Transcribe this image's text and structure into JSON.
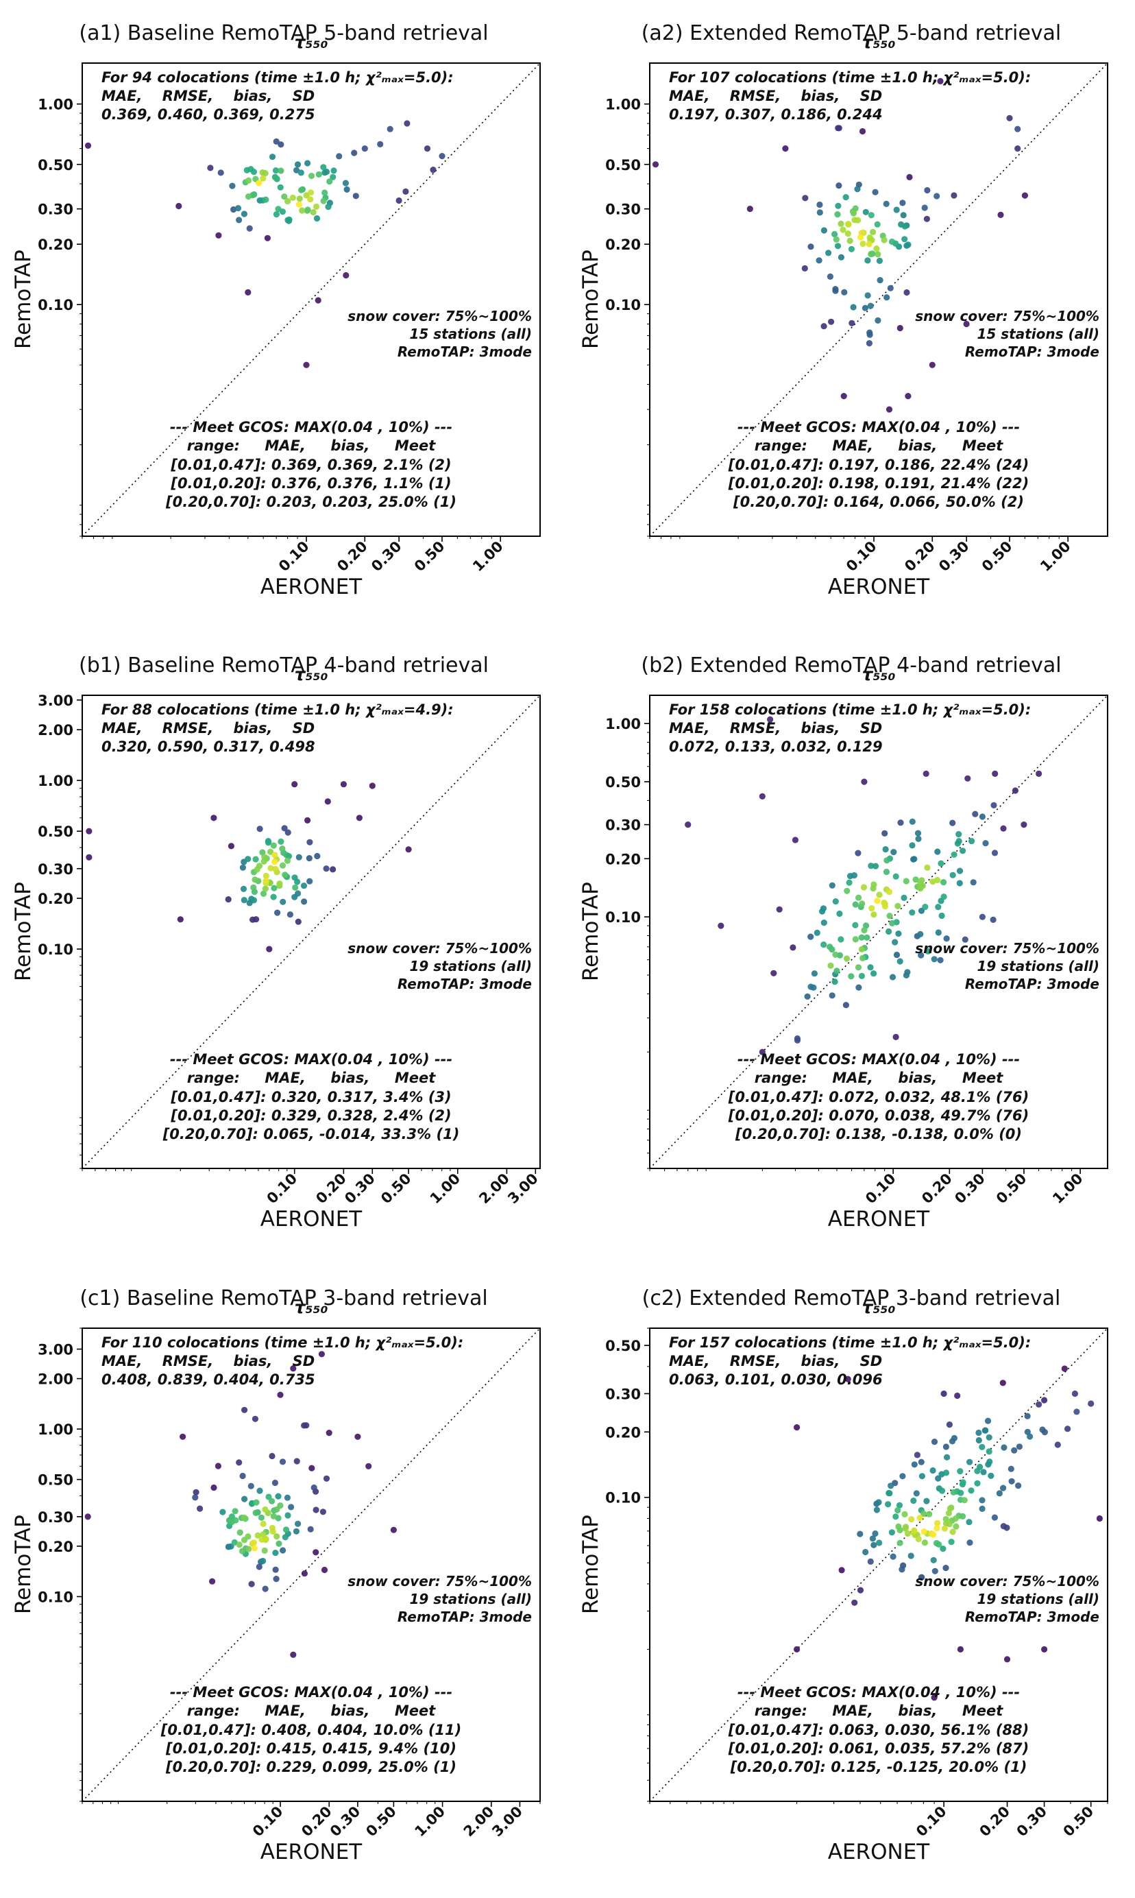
{
  "colors": {
    "axis": "#000000",
    "diagonal": "#000000",
    "viridis_stops": [
      [
        0.0,
        "#440154"
      ],
      [
        0.13,
        "#471f70"
      ],
      [
        0.25,
        "#3b518b"
      ],
      [
        0.38,
        "#2c718e"
      ],
      [
        0.5,
        "#21908d"
      ],
      [
        0.63,
        "#27ad81"
      ],
      [
        0.75,
        "#5cc863"
      ],
      [
        0.88,
        "#aadc32"
      ],
      [
        1.0,
        "#fde725"
      ]
    ]
  },
  "chart_data": [
    {
      "id": "a1",
      "type": "scatter",
      "title": "(a1) Baseline RemoTAP 5-band retrieval",
      "subtitle": "τ₅₅₀",
      "xlabel": "AERONET",
      "ylabel": "RemoTAP",
      "axis": {
        "scale": "log",
        "min": 0.007,
        "max": 1.6,
        "ticks": [
          0.1,
          0.2,
          0.3,
          0.5,
          1.0
        ]
      },
      "stats_lines": [
        "For 94 colocations (time ±1.0 h; χ²ₘₐₓ=5.0):",
        "MAE,    RMSE,    bias,    SD",
        "0.369, 0.460, 0.369, 0.275"
      ],
      "side_lines": [
        "snow cover: 75%~100%",
        "15 stations (all)",
        "RemoTAP: 3mode"
      ],
      "gcos_lines": [
        "--- Meet GCOS: MAX(0.04 , 10%) ---",
        "range:     MAE,     bias,     Meet",
        "[0.01,0.47]: 0.369, 0.369, 2.1% (2)",
        "[0.01,0.20]: 0.376, 0.376, 1.1% (1)",
        "[0.20,0.70]: 0.203, 0.203, 25.0% (1)"
      ],
      "scatter": {
        "seed": 101,
        "clusters": [
          {
            "cx": 0.085,
            "cy": 0.37,
            "sx": 0.18,
            "sy": 0.1,
            "corr": 0,
            "n": 78
          }
        ],
        "outliers": [
          [
            0.0075,
            0.62
          ],
          [
            0.27,
            0.75
          ],
          [
            0.33,
            0.8
          ],
          [
            0.42,
            0.6
          ],
          [
            0.5,
            0.55
          ],
          [
            0.24,
            0.63
          ],
          [
            0.05,
            0.115
          ],
          [
            0.115,
            0.105
          ],
          [
            0.1,
            0.05
          ],
          [
            0.032,
            0.48
          ],
          [
            0.3,
            0.33
          ],
          [
            0.2,
            0.6
          ],
          [
            0.022,
            0.31
          ],
          [
            0.16,
            0.14
          ],
          [
            0.07,
            0.65
          ],
          [
            0.45,
            0.47
          ]
        ]
      }
    },
    {
      "id": "a2",
      "type": "scatter",
      "title": "(a2) Extended RemoTAP 5-band retrieval",
      "subtitle": "τ₅₅₀",
      "xlabel": "AERONET",
      "ylabel": "RemoTAP",
      "axis": {
        "scale": "log",
        "min": 0.007,
        "max": 1.6,
        "ticks": [
          0.1,
          0.2,
          0.3,
          0.5,
          1.0
        ]
      },
      "stats_lines": [
        "For 107 colocations (time ±1.0 h; χ²ₘₐₓ=5.0):",
        "MAE,    RMSE,    bias,    SD",
        "0.197, 0.307, 0.186, 0.244"
      ],
      "side_lines": [
        "snow cover: 75%~100%",
        "15 stations (all)",
        "RemoTAP: 3mode"
      ],
      "gcos_lines": [
        "--- Meet GCOS: MAX(0.04 , 10%) ---",
        "range:     MAE,     bias,     Meet",
        "[0.01,0.47]: 0.197, 0.186, 22.4% (24)",
        "[0.01,0.20]: 0.198, 0.191, 21.4% (22)",
        "[0.20,0.70]: 0.164, 0.066, 50.0% (2)"
      ],
      "scatter": {
        "seed": 102,
        "clusters": [
          {
            "cx": 0.09,
            "cy": 0.2,
            "sx": 0.17,
            "sy": 0.2,
            "corr": 0,
            "n": 93
          }
        ],
        "outliers": [
          [
            0.22,
            1.3
          ],
          [
            0.5,
            0.85
          ],
          [
            0.0075,
            0.5
          ],
          [
            0.55,
            0.6
          ],
          [
            0.6,
            0.35
          ],
          [
            0.45,
            0.28
          ],
          [
            0.07,
            0.035
          ],
          [
            0.12,
            0.03
          ],
          [
            0.2,
            0.05
          ],
          [
            0.023,
            0.3
          ],
          [
            0.55,
            0.75
          ],
          [
            0.035,
            0.6
          ],
          [
            0.3,
            0.08
          ],
          [
            0.15,
            0.035
          ]
        ]
      }
    },
    {
      "id": "b1",
      "type": "scatter",
      "title": "(b1) Baseline RemoTAP 4-band retrieval",
      "subtitle": "τ₅₅₀",
      "xlabel": "AERONET",
      "ylabel": "RemoTAP",
      "axis": {
        "scale": "log",
        "min": 0.005,
        "max": 3.2,
        "ticks": [
          0.1,
          0.2,
          0.3,
          0.5,
          1.0,
          2.0,
          3.0
        ]
      },
      "stats_lines": [
        "For 88 colocations (time ±1.0 h; χ²ₘₐₓ=4.9):",
        "MAE,    RMSE,    bias,    SD",
        "0.320, 0.590, 0.317, 0.498"
      ],
      "side_lines": [
        "snow cover: 75%~100%",
        "19 stations (all)",
        "RemoTAP: 3mode"
      ],
      "gcos_lines": [
        "--- Meet GCOS: MAX(0.04 , 10%) ---",
        "range:     MAE,     bias,     Meet",
        "[0.01,0.47]: 0.320, 0.317, 3.4% (3)",
        "[0.01,0.20]: 0.329, 0.328, 2.4% (2)",
        "[0.20,0.70]: 0.065, -0.014, 33.3% (1)"
      ],
      "scatter": {
        "seed": 103,
        "clusters": [
          {
            "cx": 0.074,
            "cy": 0.275,
            "sx": 0.15,
            "sy": 0.13,
            "corr": 0,
            "n": 76
          }
        ],
        "outliers": [
          [
            0.2,
            0.95
          ],
          [
            0.3,
            0.93
          ],
          [
            0.0055,
            0.5
          ],
          [
            0.0055,
            0.35
          ],
          [
            0.07,
            0.1
          ],
          [
            0.5,
            0.39
          ],
          [
            0.12,
            0.58
          ],
          [
            0.25,
            0.6
          ],
          [
            0.1,
            0.95
          ],
          [
            0.032,
            0.6
          ],
          [
            0.16,
            0.75
          ],
          [
            0.02,
            0.15
          ]
        ]
      }
    },
    {
      "id": "b2",
      "type": "scatter",
      "title": "(b2) Extended RemoTAP 4-band retrieval",
      "subtitle": "τ₅₅₀",
      "xlabel": "AERONET",
      "ylabel": "RemoTAP",
      "axis": {
        "scale": "log",
        "min": 0.005,
        "max": 1.4,
        "ticks": [
          0.1,
          0.2,
          0.3,
          0.5,
          1.0
        ]
      },
      "stats_lines": [
        "For 158 colocations (time ±1.0 h; χ²ₘₐₓ=5.0):",
        "MAE,    RMSE,    bias,    SD",
        "0.072, 0.133, 0.032, 0.129"
      ],
      "side_lines": [
        "snow cover: 75%~100%",
        "19 stations (all)",
        "RemoTAP: 3mode"
      ],
      "gcos_lines": [
        "--- Meet GCOS: MAX(0.04 , 10%) ---",
        "range:     MAE,     bias,     Meet",
        "[0.01,0.47]: 0.072, 0.032, 48.1% (76)",
        "[0.01,0.20]: 0.070, 0.038, 49.7% (76)",
        "[0.20,0.70]: 0.138, -0.138, 0.0% (0)"
      ],
      "scatter": {
        "seed": 104,
        "clusters": [
          {
            "cx": 0.085,
            "cy": 0.105,
            "sx": 0.25,
            "sy": 0.2,
            "corr": 0.45,
            "n": 143
          }
        ],
        "outliers": [
          [
            0.022,
            1.05
          ],
          [
            0.02,
            0.42
          ],
          [
            0.03,
            0.25
          ],
          [
            0.25,
            0.52
          ],
          [
            0.3,
            0.33
          ],
          [
            0.45,
            0.45
          ],
          [
            0.07,
            0.5
          ],
          [
            0.5,
            0.3
          ],
          [
            0.012,
            0.09
          ],
          [
            0.15,
            0.55
          ],
          [
            0.35,
            0.55
          ],
          [
            0.008,
            0.3
          ],
          [
            0.02,
            0.02
          ],
          [
            0.3,
            0.1
          ],
          [
            0.6,
            0.55
          ]
        ]
      }
    },
    {
      "id": "c1",
      "type": "scatter",
      "title": "(c1) Baseline RemoTAP 3-band retrieval",
      "subtitle": "τ₅₅₀",
      "xlabel": "AERONET",
      "ylabel": "RemoTAP",
      "axis": {
        "scale": "log",
        "min": 0.006,
        "max": 4.0,
        "ticks": [
          0.1,
          0.2,
          0.3,
          0.5,
          1.0,
          2.0,
          3.0
        ]
      },
      "stats_lines": [
        "For 110 colocations (time ±1.0 h; χ²ₘₐₓ=5.0):",
        "MAE,    RMSE,    bias,    SD",
        "0.408, 0.839, 0.404, 0.735"
      ],
      "side_lines": [
        "snow cover: 75%~100%",
        "19 stations (all)",
        "RemoTAP: 3mode"
      ],
      "gcos_lines": [
        "--- Meet GCOS: MAX(0.04 , 10%) ---",
        "range:     MAE,     bias,     Meet",
        "[0.01,0.47]: 0.408, 0.404, 10.0% (11)",
        "[0.01,0.20]: 0.415, 0.415, 9.4% (10)",
        "[0.20,0.70]: 0.229, 0.099, 25.0% (1)"
      ],
      "scatter": {
        "seed": 105,
        "clusters": [
          {
            "cx": 0.083,
            "cy": 0.29,
            "sx": 0.18,
            "sy": 0.2,
            "corr": 0,
            "n": 97
          }
        ],
        "outliers": [
          [
            0.07,
            1.15
          ],
          [
            0.14,
            1.05
          ],
          [
            0.1,
            1.6
          ],
          [
            0.2,
            0.95
          ],
          [
            0.0065,
            0.3
          ],
          [
            0.5,
            0.25
          ],
          [
            0.12,
            0.045
          ],
          [
            0.3,
            0.9
          ],
          [
            0.12,
            2.3
          ],
          [
            0.18,
            2.8
          ],
          [
            0.025,
            0.9
          ],
          [
            0.06,
            1.3
          ],
          [
            0.35,
            0.6
          ]
        ]
      }
    },
    {
      "id": "c2",
      "type": "scatter",
      "title": "(c2) Extended RemoTAP 3-band retrieval",
      "subtitle": "τ₅₅₀",
      "xlabel": "AERONET",
      "ylabel": "RemoTAP",
      "axis": {
        "scale": "log",
        "min": 0.004,
        "max": 0.6,
        "ticks": [
          0.1,
          0.2,
          0.3,
          0.5
        ]
      },
      "stats_lines": [
        "For 157 colocations (time ±1.0 h; χ²ₘₐₓ=5.0):",
        "MAE,    RMSE,    bias,    SD",
        "0.063, 0.101, 0.030, 0.096"
      ],
      "side_lines": [
        "snow cover: 75%~100%",
        "19 stations (all)",
        "RemoTAP: 3mode"
      ],
      "gcos_lines": [
        "--- Meet GCOS: MAX(0.04 , 10%) ---",
        "range:     MAE,     bias,     Meet",
        "[0.01,0.47]: 0.063, 0.030, 56.1% (88)",
        "[0.01,0.20]: 0.061, 0.035, 57.2% (87)",
        "[0.20,0.70]: 0.125, -0.125, 20.0% (1)"
      ],
      "scatter": {
        "seed": 106,
        "clusters": [
          {
            "cx": 0.102,
            "cy": 0.1,
            "sx": 0.22,
            "sy": 0.16,
            "corr": 0.6,
            "n": 144
          }
        ],
        "outliers": [
          [
            0.02,
            0.21
          ],
          [
            0.035,
            0.35
          ],
          [
            0.3,
            0.28
          ],
          [
            0.42,
            0.3
          ],
          [
            0.5,
            0.27
          ],
          [
            0.25,
            0.2
          ],
          [
            0.1,
            0.3
          ],
          [
            0.12,
            0.02
          ],
          [
            0.2,
            0.018
          ],
          [
            0.09,
            0.012
          ],
          [
            0.3,
            0.02
          ],
          [
            0.02,
            0.02
          ],
          [
            0.55,
            0.08
          ]
        ]
      }
    }
  ]
}
